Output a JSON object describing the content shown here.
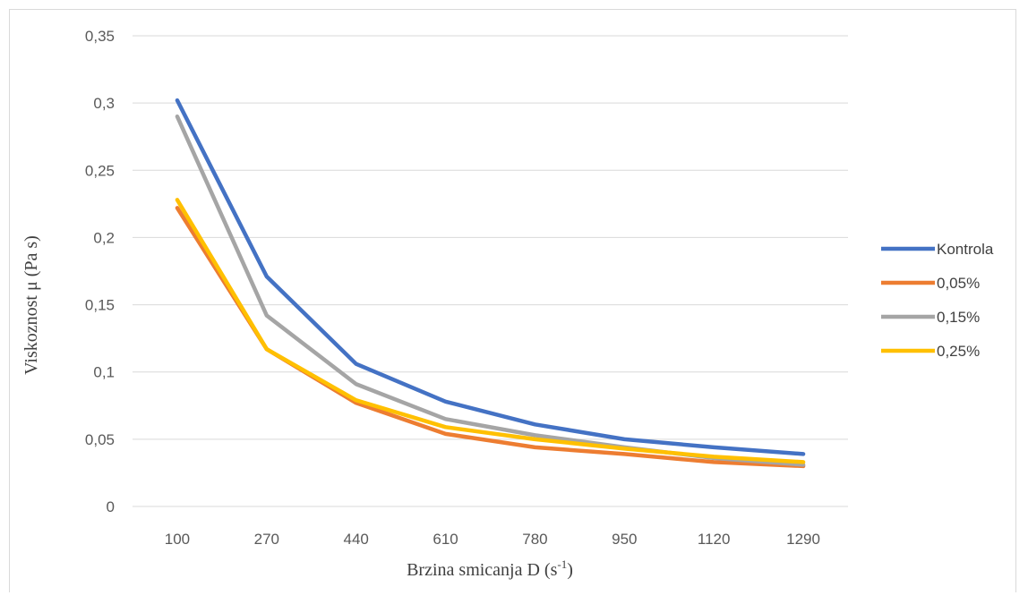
{
  "chart_data": {
    "type": "line",
    "x": [
      100,
      270,
      440,
      610,
      780,
      950,
      1120,
      1290
    ],
    "categories": [
      "100",
      "270",
      "440",
      "610",
      "780",
      "950",
      "1120",
      "1290"
    ],
    "ylim": [
      0,
      0.35
    ],
    "yticks": [
      0,
      0.05,
      0.1,
      0.15,
      0.2,
      0.25,
      0.3,
      0.35
    ],
    "ytick_labels": [
      "0",
      "0,05",
      "0,1",
      "0,15",
      "0,2",
      "0,25",
      "0,3",
      "0,35"
    ],
    "xlabel": "Brzina smicanja D (s",
    "xlabel_sup": "-1",
    "xlabel_end": ")",
    "ylabel": "Viskoznost μ (Pa s)",
    "grid": "horizontal",
    "legend_position": "right",
    "series": [
      {
        "name": "Kontrola",
        "color": "#4472c4",
        "values": [
          0.302,
          0.171,
          0.106,
          0.078,
          0.061,
          0.05,
          0.044,
          0.039
        ]
      },
      {
        "name": "0,05%",
        "color": "#ed7d31",
        "values": [
          0.222,
          0.117,
          0.077,
          0.054,
          0.044,
          0.039,
          0.033,
          0.03
        ]
      },
      {
        "name": "0,15%",
        "color": "#a5a5a5",
        "values": [
          0.29,
          0.142,
          0.091,
          0.065,
          0.053,
          0.044,
          0.036,
          0.031
        ]
      },
      {
        "name": "0,25%",
        "color": "#ffc000",
        "values": [
          0.228,
          0.117,
          0.079,
          0.059,
          0.05,
          0.043,
          0.037,
          0.033
        ]
      }
    ]
  }
}
